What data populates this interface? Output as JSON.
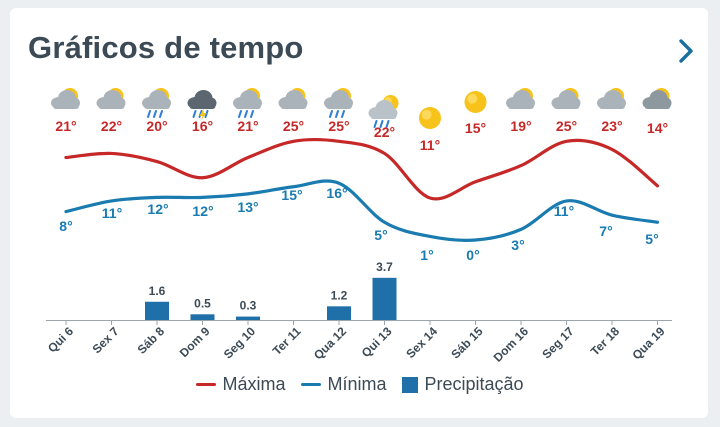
{
  "card": {
    "title": "Gráficos de tempo",
    "more_icon": "chevron-right-icon"
  },
  "colors": {
    "max": "#c62828",
    "min": "#1a7bb0",
    "precip": "#1f6fa8",
    "label_dark": "#3c4a55"
  },
  "chart_data": {
    "type": "line",
    "categories": [
      "Qui 6",
      "Sex 7",
      "Sáb 8",
      "Dom 9",
      "Seg 10",
      "Ter 11",
      "Qua 12",
      "Qui 13",
      "Sex 14",
      "Sáb 15",
      "Dom 16",
      "Seg 17",
      "Ter 18",
      "Qua 19"
    ],
    "icons": [
      "partly-cloudy-icon",
      "partly-cloudy-icon",
      "cloud-rain-icon",
      "cloud-thunder-icon",
      "cloud-rain-icon",
      "partly-cloudy-icon",
      "cloud-rain-icon",
      "sun-shower-icon",
      "sun-icon",
      "sun-icon",
      "partly-cloudy-icon",
      "partly-cloudy-icon",
      "partly-cloudy-icon",
      "cloudy-icon"
    ],
    "series": [
      {
        "name": "Máxima",
        "type": "line",
        "values": [
          21,
          22,
          20,
          16,
          21,
          25,
          25,
          22,
          11,
          15,
          19,
          25,
          23,
          14
        ],
        "labels": [
          "21°",
          "22°",
          "20°",
          "16°",
          "21°",
          "25°",
          "25°",
          "22°",
          "11°",
          "15°",
          "19°",
          "25°",
          "23°",
          "14°"
        ]
      },
      {
        "name": "Mínima",
        "type": "line",
        "values": [
          8,
          11,
          12,
          12,
          13,
          15,
          16,
          5,
          1,
          0,
          3,
          11,
          7,
          5
        ],
        "labels": [
          "8°",
          "11°",
          "12°",
          "12°",
          "13°",
          "15°",
          "16°",
          "5°",
          "1°",
          "0°",
          "3°",
          "11°",
          "7°",
          "5°"
        ]
      },
      {
        "name": "Precipitação",
        "type": "bar",
        "values": [
          0,
          0,
          1.6,
          0.5,
          0.3,
          0,
          1.2,
          3.7,
          0,
          0,
          0,
          0,
          0,
          0
        ],
        "labels": [
          "",
          "",
          "1.6",
          "0.5",
          "0.3",
          "",
          "1.2",
          "3.7",
          "",
          "",
          "",
          "",
          "",
          ""
        ]
      }
    ],
    "legend_position": "bottom"
  }
}
